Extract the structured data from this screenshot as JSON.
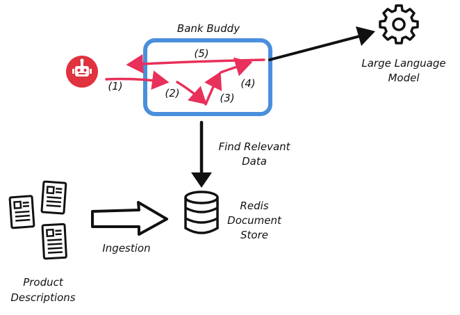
{
  "title": "Bank Buddy",
  "nodes": {
    "bot": {
      "icon": "robot-icon"
    },
    "llm": {
      "line1": "Large Language",
      "line2": "Model",
      "icon": "gear-icon"
    },
    "store": {
      "line1": "Redis",
      "line2": "Document",
      "line3": "Store",
      "icon": "database-icon"
    },
    "docs": {
      "line1": "Product",
      "line2": "Descriptions",
      "icon": "document-icon"
    }
  },
  "edges": {
    "find": {
      "line1": "Find Relevant",
      "line2": "Data"
    },
    "ingest": {
      "label": "Ingestion"
    }
  },
  "steps": [
    "(1)",
    "(2)",
    "(3)",
    "(4)",
    "(5)"
  ],
  "colors": {
    "box": "#4a8fdc",
    "flow": "#e8305a",
    "bot": "#e0323f",
    "ink": "#111111"
  }
}
